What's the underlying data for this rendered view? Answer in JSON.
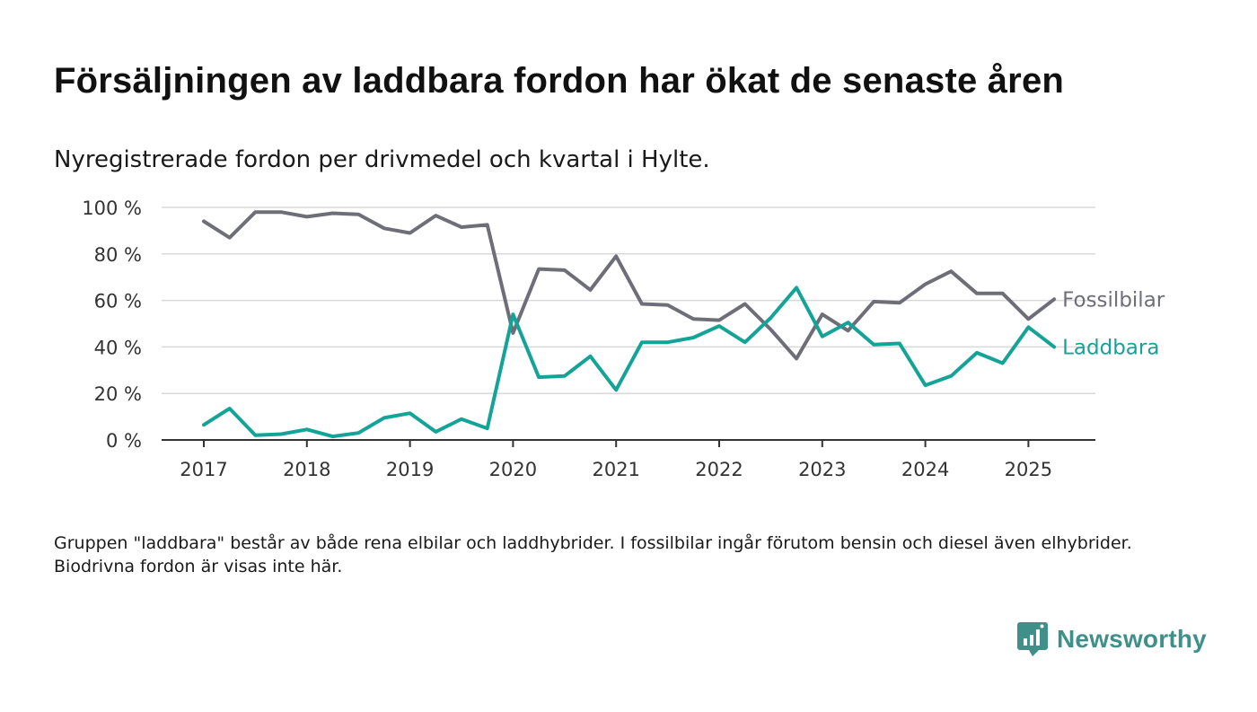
{
  "header": {
    "title": "Försäljningen av laddbara fordon har ökat de senaste åren",
    "subtitle": "Nyregistrerade fordon per drivmedel och kvartal i Hylte."
  },
  "footer": {
    "note": "Gruppen \"laddbara\" består av både rena elbilar och laddhybrider. I fossilbilar ingår förutom bensin och diesel även elhybrider. Biodrivna fordon är visas inte här.",
    "brand": "Newsworthy",
    "brand_icon": "bar-chart-speech-bubble-icon"
  },
  "colors": {
    "fossil": "#6e6e78",
    "laddbara": "#14a397",
    "grid": "#d9d9d9",
    "axis": "#333333",
    "brand": "#3f8f8a"
  },
  "chart_data": {
    "type": "line",
    "x": [
      "2017 Q1",
      "2017 Q2",
      "2017 Q3",
      "2017 Q4",
      "2018 Q1",
      "2018 Q2",
      "2018 Q3",
      "2018 Q4",
      "2019 Q1",
      "2019 Q2",
      "2019 Q3",
      "2019 Q4",
      "2020 Q1",
      "2020 Q2",
      "2020 Q3",
      "2020 Q4",
      "2021 Q1",
      "2021 Q2",
      "2021 Q3",
      "2021 Q4",
      "2022 Q1",
      "2022 Q2",
      "2022 Q3",
      "2022 Q4",
      "2023 Q1",
      "2023 Q2",
      "2023 Q3",
      "2023 Q4",
      "2024 Q1",
      "2024 Q2",
      "2024 Q3",
      "2024 Q4",
      "2025 Q1",
      "2025 Q2"
    ],
    "x_ticks": [
      "2017",
      "2018",
      "2019",
      "2020",
      "2021",
      "2022",
      "2023",
      "2024",
      "2025"
    ],
    "y_ticks": [
      "0 %",
      "20 %",
      "40 %",
      "60 %",
      "80 %",
      "100 %"
    ],
    "ylim": [
      0,
      100
    ],
    "grid": true,
    "series": [
      {
        "name": "Fossilbilar",
        "color": "#6e6e78",
        "values": [
          94,
          87,
          98,
          98,
          96,
          97.5,
          97,
          91,
          89,
          96.5,
          91.5,
          92.5,
          46,
          73.5,
          73,
          64.5,
          79,
          58.5,
          58,
          52,
          51.5,
          58.5,
          47.5,
          35,
          54,
          47,
          59.5,
          59,
          67,
          72.5,
          63,
          63,
          52,
          60.5
        ]
      },
      {
        "name": "Laddbara",
        "color": "#14a397",
        "values": [
          6.5,
          13.5,
          2,
          2.5,
          4.5,
          1.5,
          3,
          9.5,
          11.5,
          3.5,
          9,
          5,
          54,
          27,
          27.5,
          36,
          21.5,
          42,
          42,
          44,
          49,
          42,
          52.5,
          65.5,
          44.5,
          50.5,
          41,
          41.5,
          23.5,
          27.5,
          37.5,
          33,
          48.5,
          40
        ]
      }
    ]
  }
}
